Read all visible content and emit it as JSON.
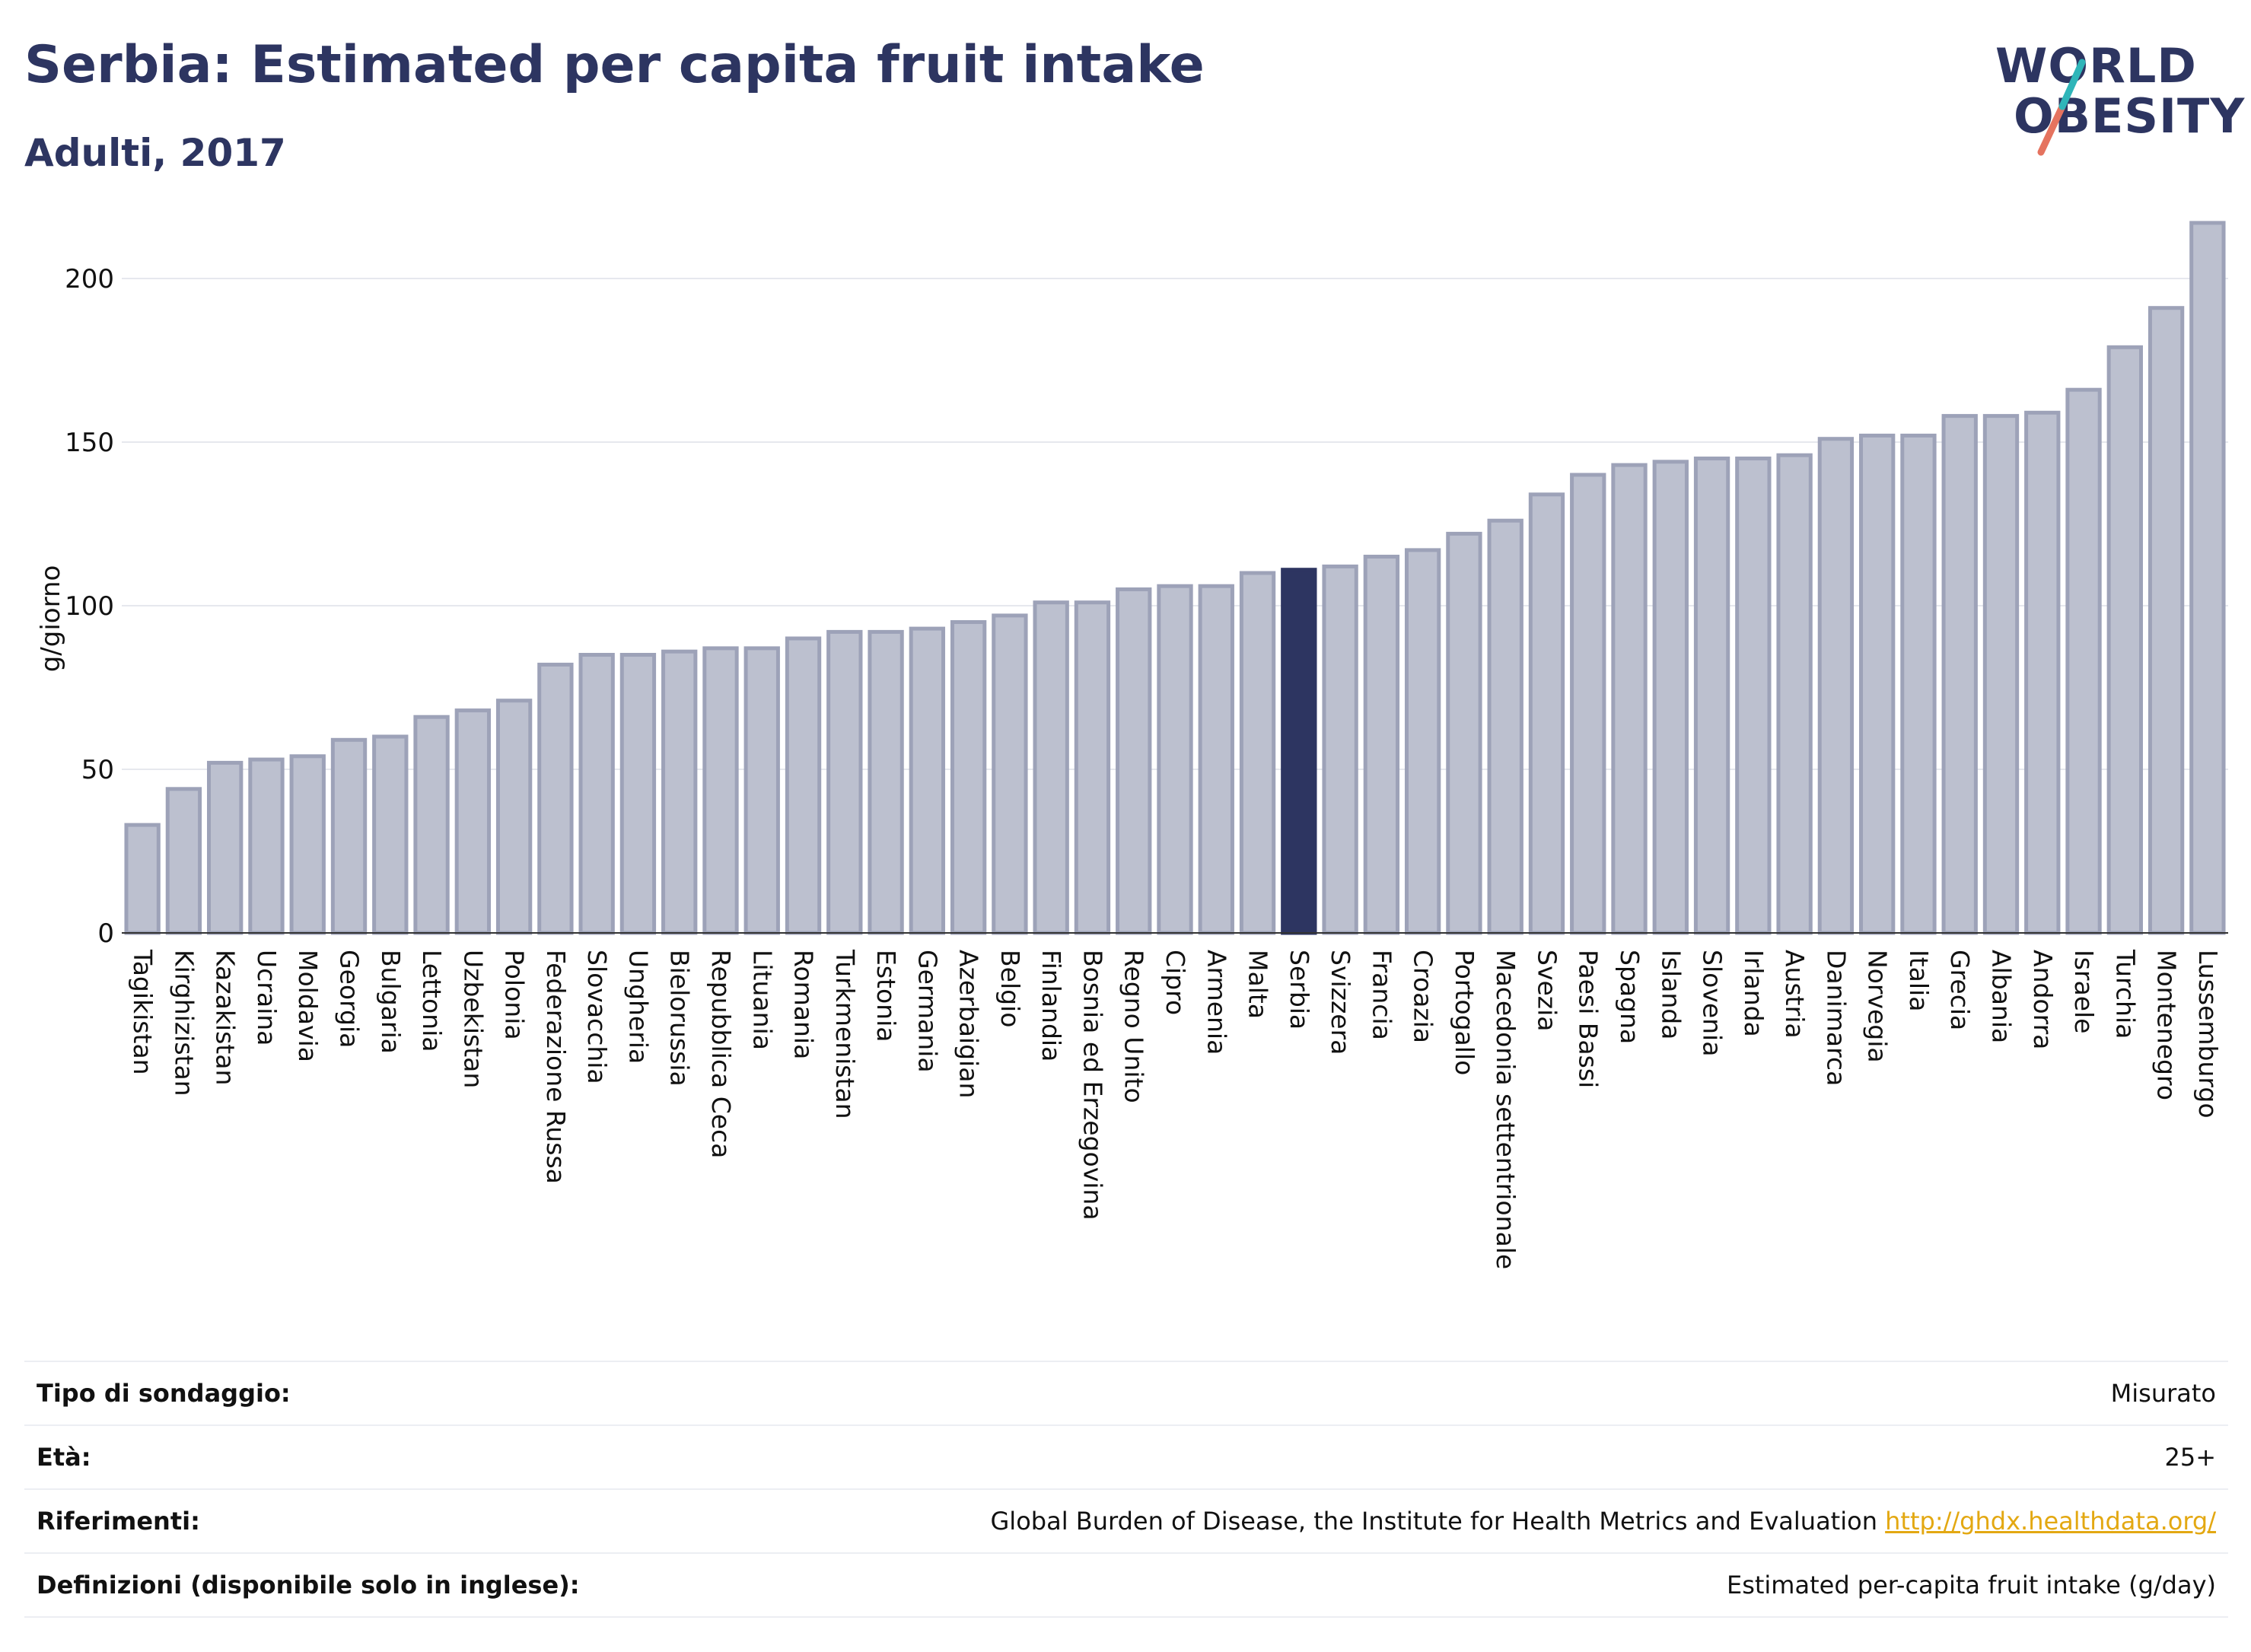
{
  "header": {
    "title": "Serbia: Estimated per capita fruit intake",
    "subtitle": "Adulti, 2017"
  },
  "logo": {
    "line1": "WORLD",
    "line2": "OBESITY",
    "colors": {
      "text": "#2d3561",
      "slash_top": "#2fb5b9",
      "slash_bottom": "#e5735f"
    }
  },
  "colors": {
    "bar_fill": "#bcc0cf",
    "bar_stroke": "#9da2b8",
    "highlight": "#2d3561",
    "grid": "#e6e8ee",
    "axis_text": "#111111"
  },
  "chart_data": {
    "type": "bar",
    "ylabel": "g/giorno",
    "ylim": [
      0,
      220
    ],
    "yticks": [
      0,
      50,
      100,
      150,
      200
    ],
    "grid": true,
    "highlight": "Serbia",
    "categories": [
      "Tagikistan",
      "Kirghizistan",
      "Kazakistan",
      "Ucraina",
      "Moldavia",
      "Georgia",
      "Bulgaria",
      "Lettonia",
      "Uzbekistan",
      "Polonia",
      "Federazione Russa",
      "Slovacchia",
      "Ungheria",
      "Bielorussia",
      "Repubblica Ceca",
      "Lituania",
      "Romania",
      "Turkmenistan",
      "Estonia",
      "Germania",
      "Azerbaigian",
      "Belgio",
      "Finlandia",
      "Bosnia ed Erzegovina",
      "Regno Unito",
      "Cipro",
      "Armenia",
      "Malta",
      "Serbia",
      "Svizzera",
      "Francia",
      "Croazia",
      "Portogallo",
      "Macedonia settentrionale",
      "Svezia",
      "Paesi Bassi",
      "Spagna",
      "Islanda",
      "Slovenia",
      "Irlanda",
      "Austria",
      "Danimarca",
      "Norvegia",
      "Italia",
      "Grecia",
      "Albania",
      "Andorra",
      "Israele",
      "Turchia",
      "Montenegro",
      "Lussemburgo"
    ],
    "values": [
      33,
      44,
      52,
      53,
      54,
      59,
      60,
      66,
      68,
      71,
      82,
      85,
      85,
      86,
      87,
      87,
      90,
      92,
      92,
      93,
      95,
      97,
      101,
      101,
      105,
      106,
      106,
      110,
      111,
      112,
      115,
      117,
      122,
      126,
      134,
      140,
      143,
      144,
      145,
      145,
      146,
      151,
      152,
      152,
      158,
      158,
      159,
      166,
      179,
      191,
      217
    ]
  },
  "info": {
    "rows": [
      {
        "label": "Tipo di sondaggio:",
        "value": "Misurato"
      },
      {
        "label": "Età:",
        "value": "25+"
      },
      {
        "label": "Riferimenti:",
        "value": "Global Burden of Disease, the Institute for Health Metrics and Evaluation",
        "link": "http://ghdx.healthdata.org/"
      },
      {
        "label": "Definizioni (disponibile solo in inglese):",
        "value": "Estimated per-capita fruit intake (g/day)"
      }
    ]
  }
}
